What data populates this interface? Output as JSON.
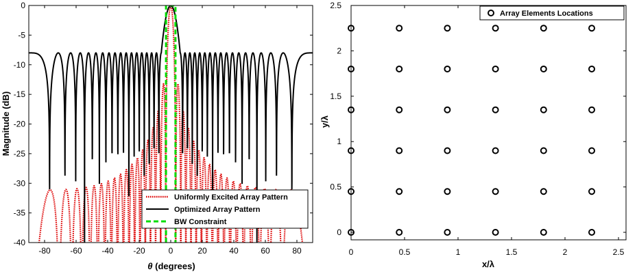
{
  "chart_data": [
    {
      "type": "line",
      "xlabel_symbol": "θ",
      "xlabel_text": " (degrees)",
      "ylabel": "Magnitude (dB)",
      "xlim": [
        -90,
        90
      ],
      "ylim": [
        -40,
        0
      ],
      "xticks": [
        -80,
        -60,
        -40,
        -20,
        0,
        20,
        40,
        60,
        80
      ],
      "yticks": [
        0,
        -5,
        -10,
        -15,
        -20,
        -25,
        -30,
        -35,
        -40
      ],
      "legend_position": "bottom-right",
      "series": [
        {
          "name": "Uniformly Excited Array Pattern",
          "color": "#dd0000",
          "style": "dotted",
          "n_elements": 36,
          "description_values": {
            "mainlobe_peak_db": 0,
            "first_sidelobe_db": -13.3,
            "far_sidelobe_db": -31
          }
        },
        {
          "name": "Optimized Array Pattern",
          "color": "#000000",
          "style": "solid",
          "sidelobe_level_db": -8,
          "mainlobe_peak_db": 0,
          "null_floor_db": -40
        },
        {
          "name": "BW Constraint",
          "color": "#00dd00",
          "style": "dashed",
          "x": [
            -3,
            -3,
            3,
            3
          ],
          "y": [
            -40,
            0,
            0,
            -40
          ]
        }
      ]
    },
    {
      "type": "scatter",
      "xlabel": "x/λ",
      "ylabel": "y/λ",
      "xlim": [
        0,
        2.5
      ],
      "ylim": [
        0,
        2.5
      ],
      "xticks": [
        0,
        0.5,
        1,
        1.5,
        2,
        2.5
      ],
      "yticks": [
        0,
        0.5,
        1,
        1.5,
        2,
        2.5
      ],
      "legend_position": "top-right",
      "series": [
        {
          "name": "Array Elements Locations",
          "marker": "circle",
          "x_positions": [
            0,
            0.45,
            0.9,
            1.35,
            1.8,
            2.25
          ],
          "y_positions": [
            0,
            0.45,
            0.9,
            1.35,
            1.8,
            2.25
          ]
        }
      ]
    }
  ]
}
